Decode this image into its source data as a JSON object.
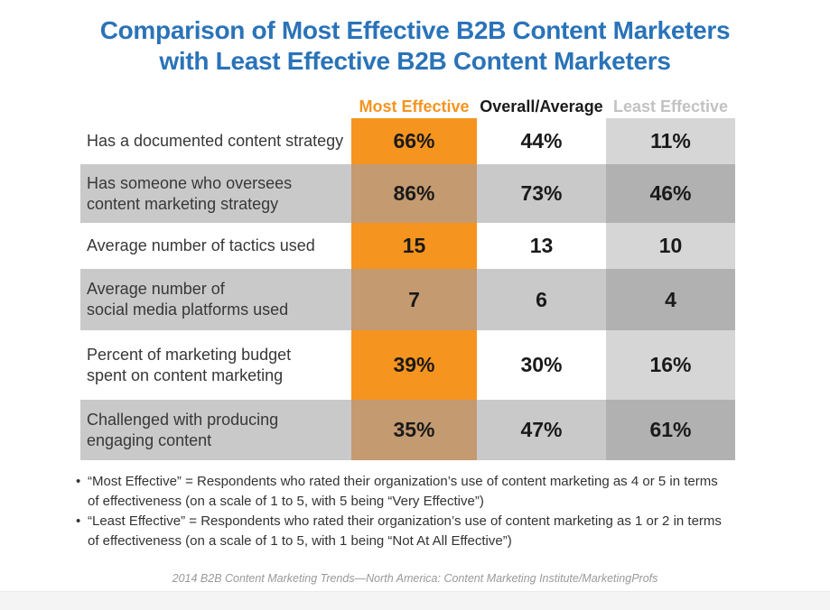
{
  "title": {
    "line1": "Comparison of Most Effective B2B Content Marketers",
    "line2": "with Least Effective B2B Content Marketers"
  },
  "chart_data": {
    "type": "table",
    "title": "Comparison of Most Effective B2B Content Marketers with Least Effective B2B Content Marketers",
    "columns": [
      "Most Effective",
      "Overall/Average",
      "Least Effective"
    ],
    "rows": [
      {
        "label": "Has a documented content strategy",
        "label_lines": [
          "Has a documented content strategy"
        ],
        "values": [
          "66%",
          "44%",
          "11%"
        ]
      },
      {
        "label": "Has someone who oversees content marketing strategy",
        "label_lines": [
          "Has someone who oversees",
          "content marketing strategy"
        ],
        "values": [
          "86%",
          "73%",
          "46%"
        ]
      },
      {
        "label": "Average number of tactics used",
        "label_lines": [
          "Average number of tactics used"
        ],
        "values": [
          "15",
          "13",
          "10"
        ]
      },
      {
        "label": "Average number of social media platforms used",
        "label_lines": [
          "Average number of",
          "social media platforms used"
        ],
        "values": [
          "7",
          "6",
          "4"
        ]
      },
      {
        "label": "Percent of marketing budget spent on content marketing",
        "label_lines": [
          "Percent of marketing budget",
          "spent on content marketing"
        ],
        "values": [
          "39%",
          "30%",
          "16%"
        ]
      },
      {
        "label": "Challenged with producing engaging content",
        "label_lines": [
          "Challenged with producing",
          "engaging content"
        ],
        "values": [
          "35%",
          "47%",
          "61%"
        ]
      }
    ],
    "legend_position": "top",
    "grid": false
  },
  "footnote_bullet": "•",
  "footnotes": [
    {
      "lines": [
        "“Most Effective” = Respondents who rated their organization’s use of content marketing as 4 or 5 in terms",
        "of effectiveness (on a scale of 1 to 5, with 5 being “Very Effective”)"
      ]
    },
    {
      "lines": [
        "“Least Effective” = Respondents who rated their organization’s use of content marketing as 1 or 2 in terms",
        "of effectiveness (on a scale of 1 to 5, with 1 being “Not At All Effective”)"
      ]
    }
  ],
  "source": "2014 B2B Content Marketing Trends—North America: Content Marketing Institute/MarketingProfs",
  "colors": {
    "title_blue": "#2A73B8",
    "most_effective_orange": "#F5941F",
    "most_effective_orange_muted": "#C49A70",
    "row_band_gray": "#C9C9C9",
    "least_effective_light_gray": "#D6D6D6",
    "least_effective_dark_gray": "#B1B1B1",
    "least_effective_header_gray": "#C2C2C2",
    "text_dark": "#1A1A1A",
    "label_text": "#383838",
    "footnote_text": "#333333",
    "source_gray": "#999999",
    "footer_strip": "#F4F4F4"
  }
}
